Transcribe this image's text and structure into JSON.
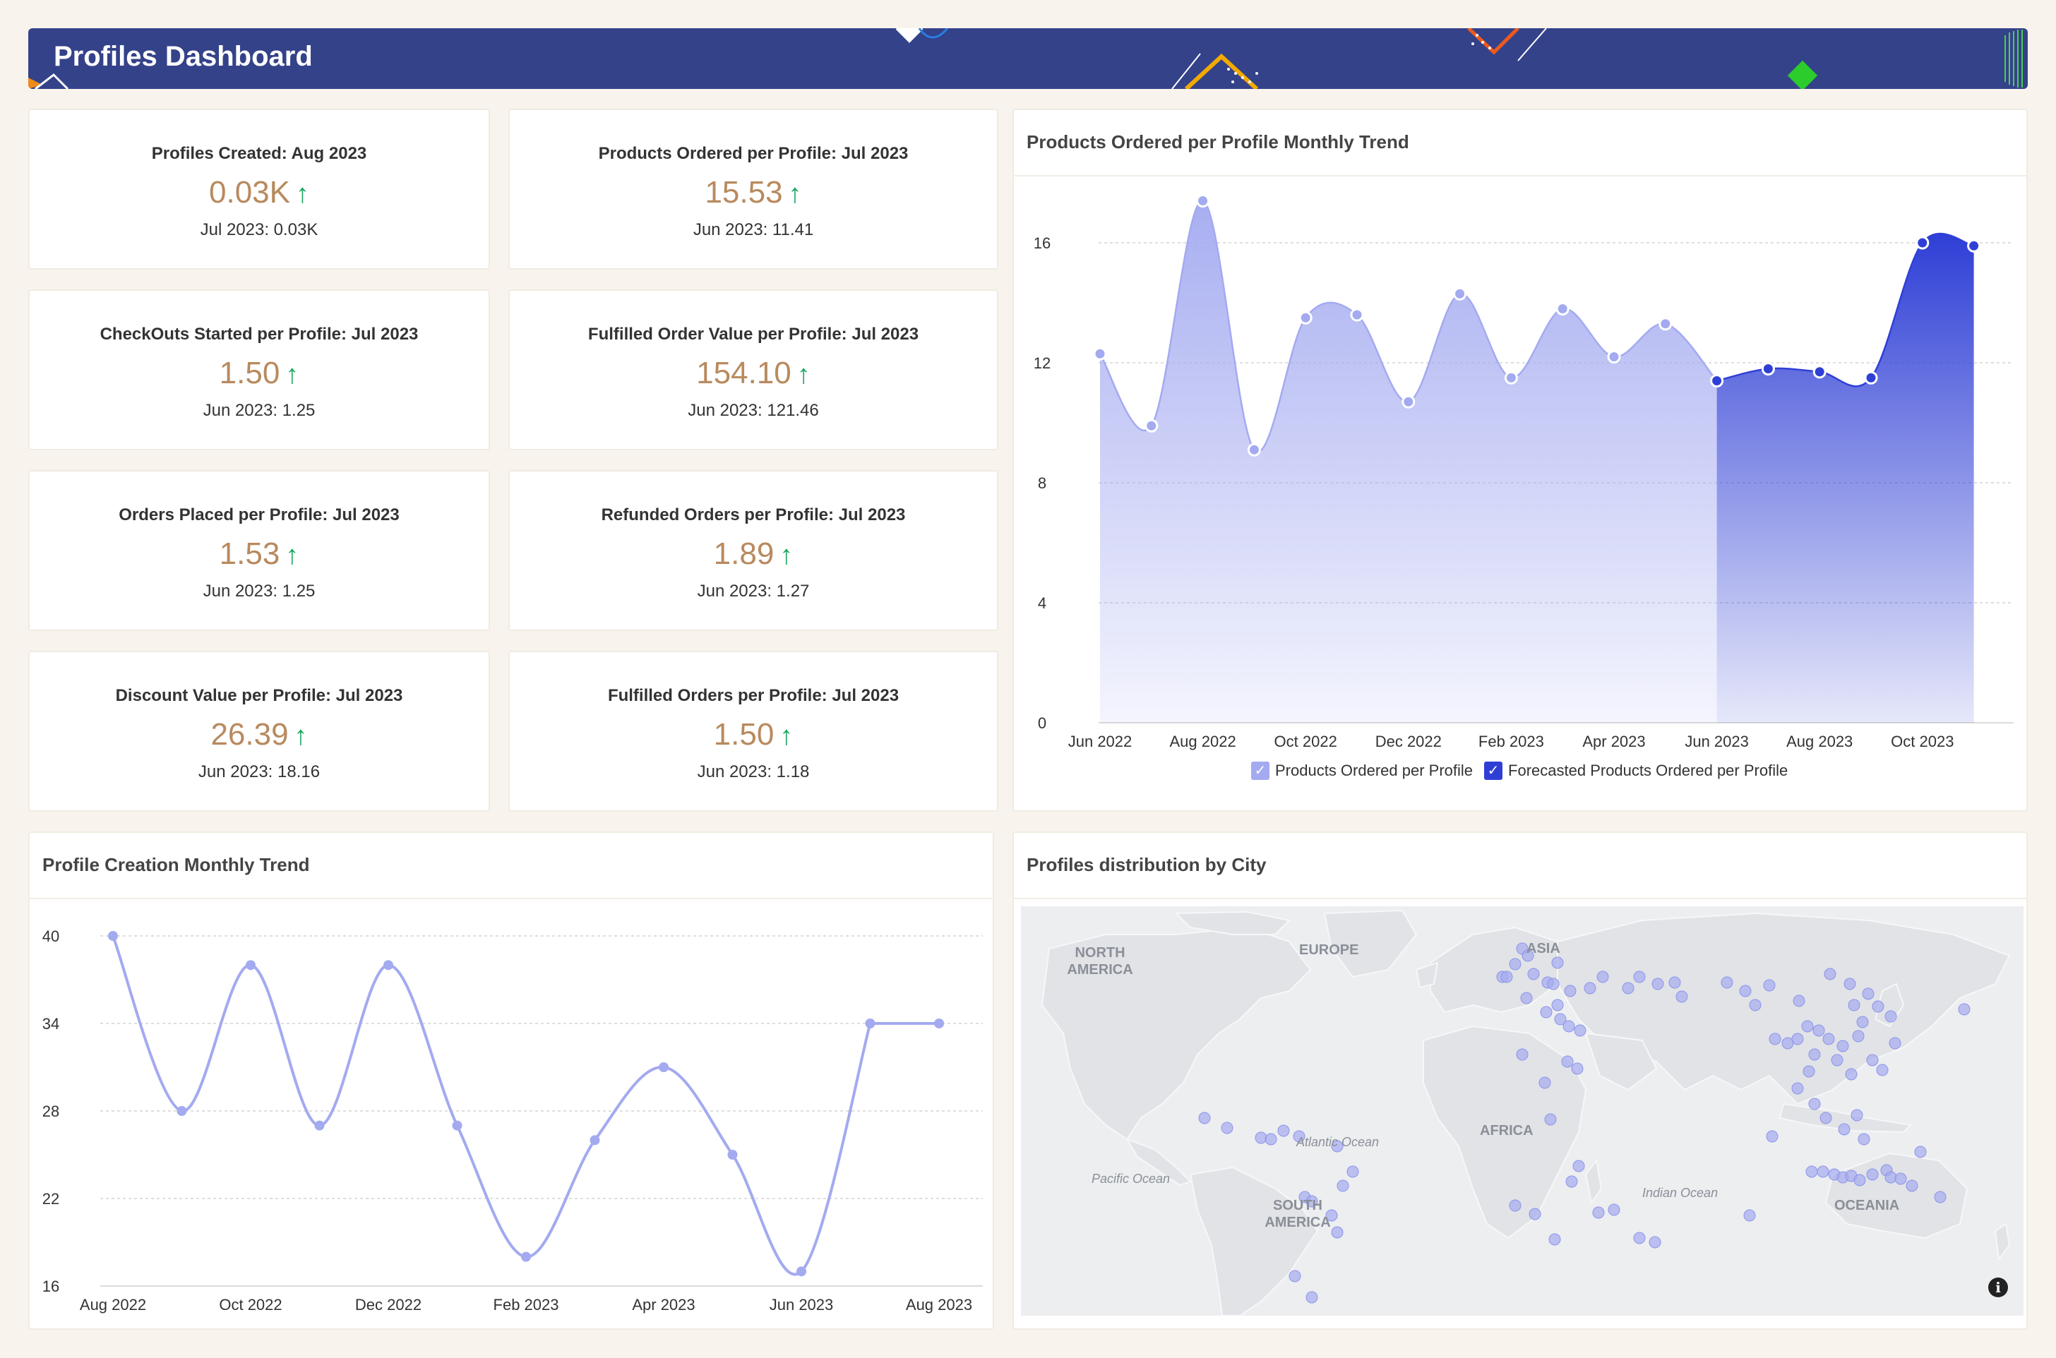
{
  "header": {
    "title": "Profiles Dashboard"
  },
  "kpis": [
    {
      "title": "Profiles Created: Aug 2023",
      "value": "0.03K",
      "arrow": "↑",
      "prev": "Jul 2023: 0.03K"
    },
    {
      "title": "Products Ordered per Profile: Jul 2023",
      "value": "15.53",
      "arrow": "↑",
      "prev": "Jun 2023: 11.41"
    },
    {
      "title": "CheckOuts Started per Profile: Jul 2023",
      "value": "1.50",
      "arrow": "↑",
      "prev": "Jun 2023: 1.25"
    },
    {
      "title": "Fulfilled Order Value per Profile: Jul 2023",
      "value": "154.10",
      "arrow": "↑",
      "prev": "Jun 2023: 121.46"
    },
    {
      "title": "Orders Placed per Profile: Jul 2023",
      "value": "1.53",
      "arrow": "↑",
      "prev": "Jun 2023: 1.25"
    },
    {
      "title": "Refunded Orders per Profile: Jul 2023",
      "value": "1.89",
      "arrow": "↑",
      "prev": "Jun 2023: 1.27"
    },
    {
      "title": "Discount Value per Profile: Jul 2023",
      "value": "26.39",
      "arrow": "↑",
      "prev": "Jun 2023: 18.16"
    },
    {
      "title": "Fulfilled Orders per Profile: Jul 2023",
      "value": "1.50",
      "arrow": "↑",
      "prev": "Jun 2023: 1.18"
    }
  ],
  "colors": {
    "header": "#34428a",
    "kpi_value": "#b88a5e",
    "up_arrow": "#1aa860",
    "actual": "#a3aaf0",
    "forecast": "#2f3fd6",
    "map_land": "#e1e3e6",
    "map_water": "#eceef0",
    "map_dot": "#a5abf0"
  },
  "map": {
    "title": "Profiles distribution by City",
    "labels": {
      "north_america": [
        "NORTH",
        "AMERICA"
      ],
      "south_america": [
        "SOUTH",
        "AMERICA"
      ],
      "europe": "EUROPE",
      "asia": "ASIA",
      "africa": "AFRICA",
      "oceania": "OCEANIA",
      "atlantic": "Atlantic Ocean",
      "pacific": "Pacific Ocean",
      "indian": "Indian Ocean"
    },
    "info_icon": "info-icon",
    "info_glyph": "i"
  },
  "chart_data": [
    {
      "type": "area",
      "title": "Products Ordered per Profile Monthly Trend",
      "x": [
        "Jun 2022",
        "Jul 2022",
        "Aug 2022",
        "Sep 2022",
        "Oct 2022",
        "Nov 2022",
        "Dec 2022",
        "Jan 2023",
        "Feb 2023",
        "Mar 2023",
        "Apr 2023",
        "May 2023",
        "Jun 2023",
        "Jul 2023",
        "Aug 2023",
        "Sep 2023",
        "Oct 2023",
        "Nov 2023"
      ],
      "xticks": [
        "Jun 2022",
        "Aug 2022",
        "Oct 2022",
        "Dec 2022",
        "Feb 2023",
        "Apr 2023",
        "Jun 2023",
        "Aug 2023",
        "Oct 2023"
      ],
      "series": [
        {
          "name": "Products Ordered per Profile",
          "values": [
            12.3,
            9.9,
            17.4,
            9.1,
            13.5,
            13.6,
            10.7,
            14.3,
            11.5,
            13.8,
            12.2,
            13.3,
            11.4,
            null,
            null,
            null,
            null,
            null
          ]
        },
        {
          "name": "Forecasted Products Ordered per Profile",
          "values": [
            null,
            null,
            null,
            null,
            null,
            null,
            null,
            null,
            null,
            null,
            null,
            null,
            11.4,
            11.8,
            11.7,
            11.5,
            16.0,
            15.9
          ]
        }
      ],
      "yticks": [
        0,
        4,
        8,
        12,
        16
      ],
      "ylim": [
        0,
        17.6
      ],
      "grid": true,
      "legend": "bottom"
    },
    {
      "type": "line",
      "title": "Profile Creation Monthly Trend",
      "x": [
        "Aug 2022",
        "Sep 2022",
        "Oct 2022",
        "Nov 2022",
        "Dec 2022",
        "Jan 2023",
        "Feb 2023",
        "Mar 2023",
        "Apr 2023",
        "May 2023",
        "Jun 2023",
        "Jul 2023",
        "Aug 2023"
      ],
      "xticks": [
        "Aug 2022",
        "Oct 2022",
        "Dec 2022",
        "Feb 2023",
        "Apr 2023",
        "Jun 2023",
        "Aug 2023"
      ],
      "values": [
        40,
        28,
        38,
        27,
        38,
        27,
        18,
        26,
        31,
        25,
        17,
        34,
        34
      ],
      "yticks": [
        16,
        22,
        28,
        34,
        40
      ],
      "ylim": [
        16,
        40
      ],
      "grid": true
    }
  ]
}
